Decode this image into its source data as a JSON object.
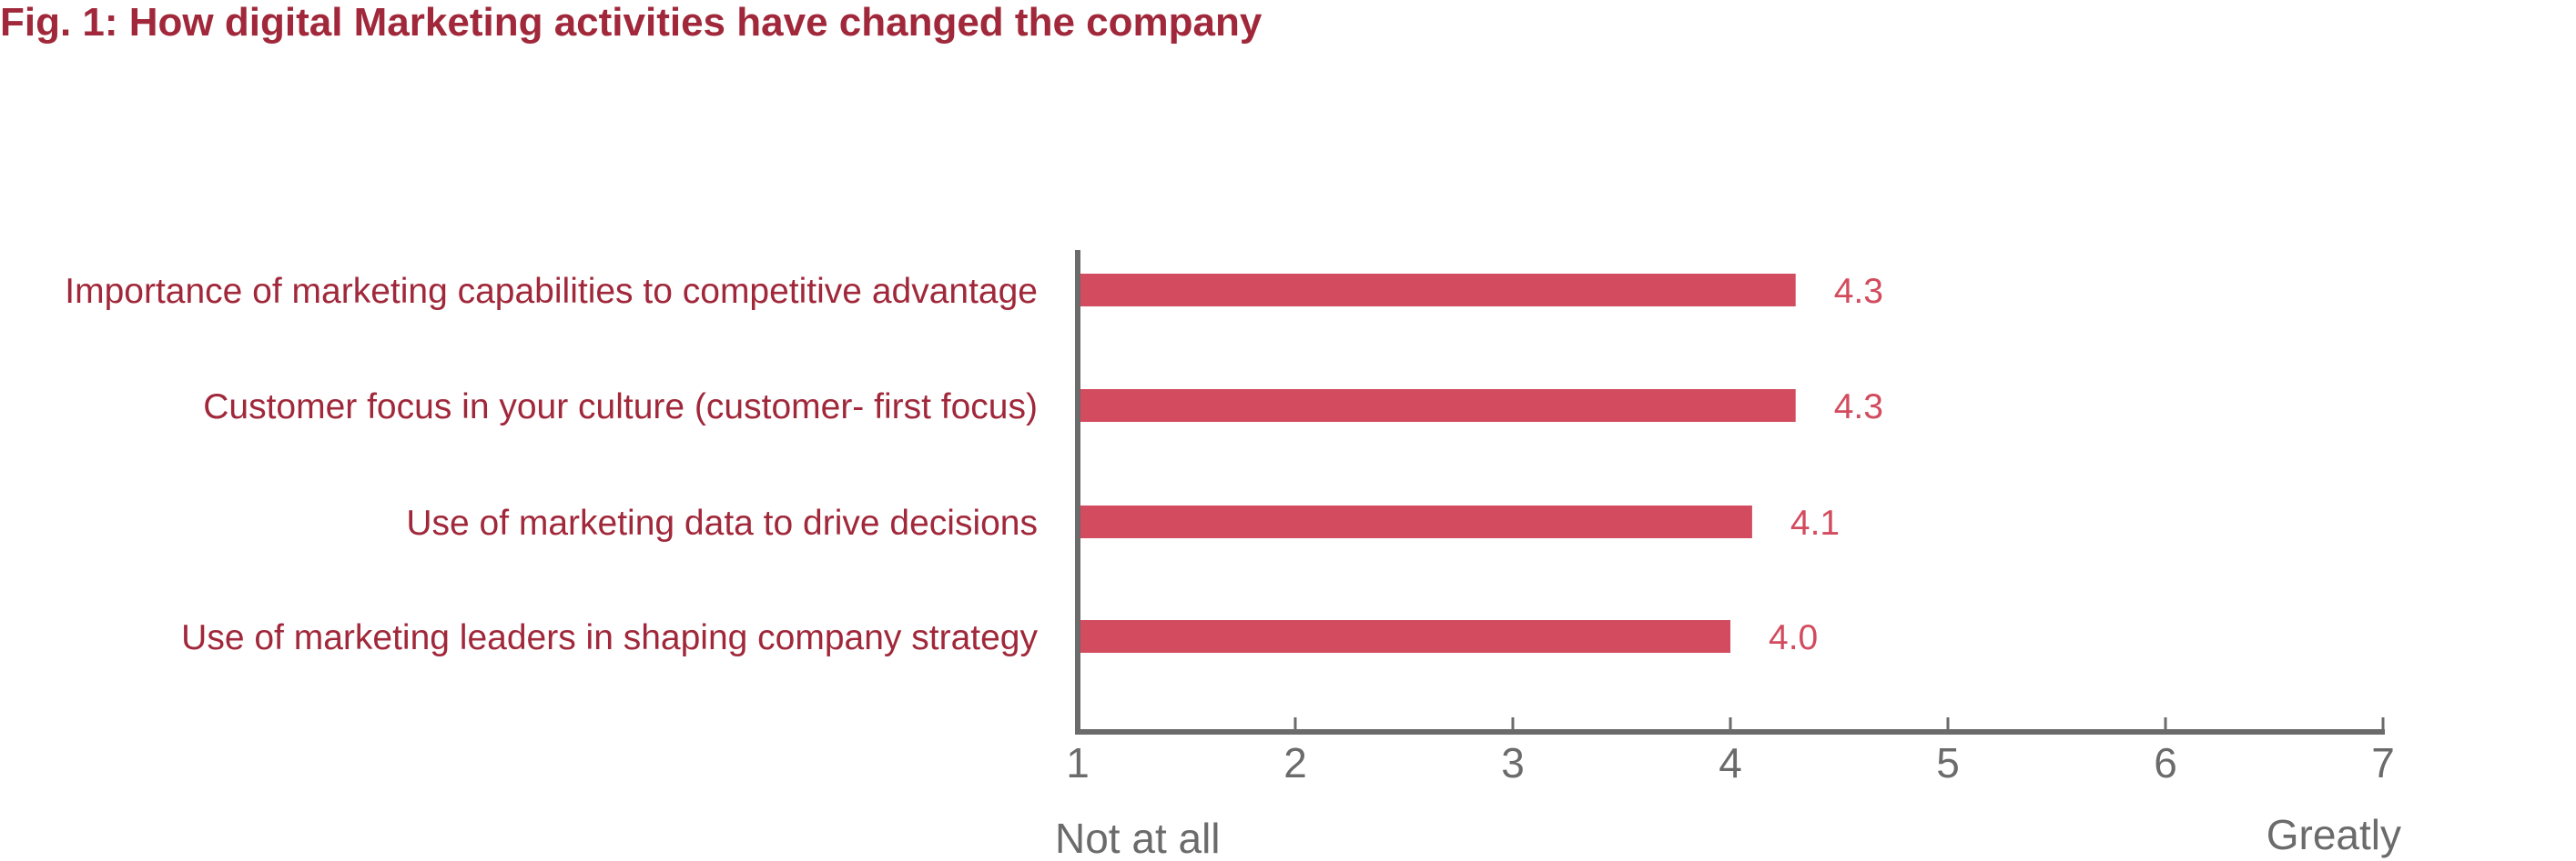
{
  "chart_data": {
    "type": "bar",
    "orientation": "horizontal",
    "title": "Fig. 1: How digital Marketing activities have changed the company",
    "categories": [
      "Importance of marketing capabilities to competitive advantage",
      "Customer focus in your culture (customer- first focus)",
      "Use of marketing data to drive decisions",
      "Use of marketing leaders in shaping company strategy"
    ],
    "values": [
      4.3,
      4.3,
      4.1,
      4.0
    ],
    "value_labels": [
      "4.3",
      "4.3",
      "4.1",
      "4.0"
    ],
    "xlim": [
      1,
      7
    ],
    "xticks": [
      "1",
      "2",
      "3",
      "4",
      "5",
      "6",
      "7"
    ],
    "scale_low_label": "Not at all",
    "scale_high_label": "Greatly",
    "grid": false,
    "legend": "none"
  },
  "colors": {
    "bar": "#d24b5e",
    "value_text": "#d24b5e",
    "category_text": "#a0283a",
    "title": "#a0283a",
    "axis": "#6b6b6b"
  }
}
